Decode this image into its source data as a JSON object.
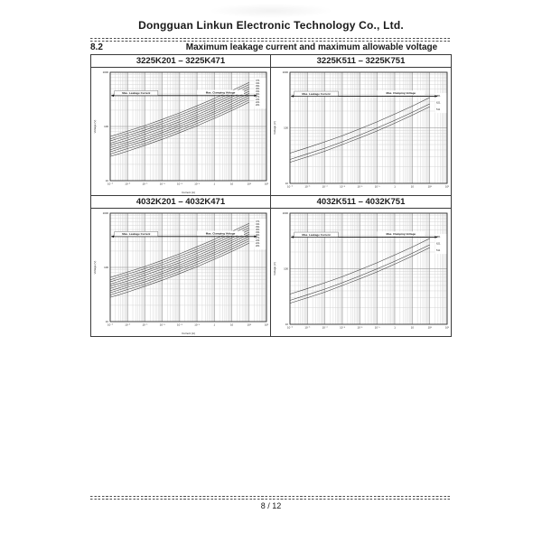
{
  "page": {
    "company": "Dongguan Linkun Electronic Technology Co., Ltd.",
    "section_number": "8.2",
    "section_title": "Maximum leakage current and maximum allowable voltage",
    "page_number": "8 / 12"
  },
  "chart_data": [
    {
      "type": "line",
      "title": "3225K201 – 3225K471",
      "xlabel": "Current (A)",
      "ylabel": "Voltage  (V)",
      "x_scale": "log",
      "y_scale": "log",
      "x_range_log": [
        -6,
        3
      ],
      "y_range_log": [
        1,
        3
      ],
      "x_ticks": [
        "10⁻⁶",
        "10⁻⁵",
        "10⁻⁴",
        "10⁻³",
        "10⁻²",
        "10⁻¹",
        "1",
        "10",
        "10²",
        "10³"
      ],
      "y_ticks": [
        "10",
        "100",
        "1000"
      ],
      "grid": "log-minor",
      "legend_position": "right-inside",
      "annotation_leakage": "Max. Leakage Current",
      "annotation_clamping": "Max. Clamping  Voltage",
      "x_points_log": [
        -6,
        -5,
        -4,
        -3,
        -2,
        -1,
        0,
        1,
        2
      ],
      "series": [
        {
          "label": "471",
          "voltages": [
            65,
            82,
            104,
            135,
            178,
            240,
            328,
            458,
            650
          ]
        },
        {
          "label": "431",
          "voltages": [
            59,
            75,
            95,
            123,
            162,
            218,
            299,
            417,
            592
          ]
        },
        {
          "label": "391",
          "voltages": [
            54,
            68,
            86,
            112,
            148,
            199,
            272,
            379,
            539
          ]
        },
        {
          "label": "361",
          "voltages": [
            49,
            62,
            79,
            102,
            134,
            181,
            248,
            346,
            491
          ]
        },
        {
          "label": "331",
          "voltages": [
            45,
            56,
            72,
            93,
            122,
            165,
            226,
            315,
            447
          ]
        },
        {
          "label": "301",
          "voltages": [
            41,
            51,
            65,
            84,
            111,
            150,
            205,
            287,
            407
          ]
        },
        {
          "label": "271",
          "voltages": [
            37,
            47,
            59,
            77,
            102,
            137,
            187,
            261,
            371
          ]
        },
        {
          "label": "241",
          "voltages": [
            34,
            43,
            54,
            70,
            93,
            125,
            171,
            238,
            338
          ]
        },
        {
          "label": "221",
          "voltages": [
            31,
            39,
            49,
            64,
            84,
            114,
            155,
            217,
            308
          ]
        },
        {
          "label": "201",
          "voltages": [
            28,
            35,
            45,
            58,
            77,
            103,
            141,
            197,
            280
          ]
        }
      ]
    },
    {
      "type": "line",
      "title": "3225K511 – 3225K751",
      "xlabel": "",
      "ylabel": "Voltage  (V)",
      "x_scale": "log",
      "y_scale": "log",
      "x_range_log": [
        -6,
        3
      ],
      "y_range_log": [
        1,
        3
      ],
      "x_ticks": [
        "10⁻⁶",
        "10⁻⁵",
        "10⁻⁴",
        "10⁻³",
        "10⁻²",
        "10⁻¹",
        "1",
        "10",
        "10²",
        "10³"
      ],
      "y_ticks": [
        "10",
        "100",
        "1000"
      ],
      "grid": "log-minor",
      "legend_position": "right-inside",
      "annotation_leakage": "Max. Leakage Current",
      "annotation_clamping": "Max.  Clamping  Voltage",
      "x_points_log": [
        -6,
        -5,
        -4,
        -3,
        -2,
        -1,
        0,
        1,
        2
      ],
      "series": [
        {
          "label": "751",
          "voltages": [
            35,
            44,
            56,
            72,
            96,
            129,
            177,
            246,
            350
          ]
        },
        {
          "label": "621",
          "voltages": [
            27,
            34,
            43,
            56,
            74,
            100,
            136,
            190,
            270
          ]
        },
        {
          "label": "511",
          "voltages": [
            24,
            30,
            38,
            50,
            66,
            88,
            121,
            169,
            240
          ]
        }
      ]
    },
    {
      "type": "line",
      "title": "4032K201 – 4032K471",
      "xlabel": "Current (A)",
      "ylabel": "Voltage  (V)",
      "x_scale": "log",
      "y_scale": "log",
      "x_range_log": [
        -6,
        3
      ],
      "y_range_log": [
        1,
        3
      ],
      "x_ticks": [
        "10⁻⁶",
        "10⁻⁵",
        "10⁻⁴",
        "10⁻³",
        "10⁻²",
        "10⁻¹",
        "1",
        "10",
        "10²",
        "10³"
      ],
      "y_ticks": [
        "10",
        "100",
        "1000"
      ],
      "grid": "log-minor",
      "legend_position": "right-inside",
      "annotation_leakage": "Max. Leakage Current",
      "annotation_clamping": "Max. Clamping  Voltage",
      "x_points_log": [
        -6,
        -5,
        -4,
        -3,
        -2,
        -1,
        0,
        1,
        2
      ],
      "series": [
        {
          "label": "471",
          "voltages": [
            65,
            82,
            104,
            135,
            178,
            240,
            328,
            458,
            650
          ]
        },
        {
          "label": "431",
          "voltages": [
            59,
            75,
            95,
            123,
            162,
            218,
            299,
            417,
            592
          ]
        },
        {
          "label": "391",
          "voltages": [
            54,
            68,
            86,
            112,
            148,
            199,
            272,
            379,
            539
          ]
        },
        {
          "label": "361",
          "voltages": [
            49,
            62,
            79,
            102,
            134,
            181,
            248,
            346,
            491
          ]
        },
        {
          "label": "331",
          "voltages": [
            45,
            56,
            72,
            93,
            122,
            165,
            226,
            315,
            447
          ]
        },
        {
          "label": "301",
          "voltages": [
            41,
            51,
            65,
            84,
            111,
            150,
            205,
            287,
            407
          ]
        },
        {
          "label": "271",
          "voltages": [
            37,
            47,
            59,
            77,
            102,
            137,
            187,
            261,
            371
          ]
        },
        {
          "label": "241",
          "voltages": [
            34,
            43,
            54,
            70,
            93,
            125,
            171,
            238,
            338
          ]
        },
        {
          "label": "221",
          "voltages": [
            31,
            39,
            49,
            64,
            84,
            114,
            155,
            217,
            308
          ]
        },
        {
          "label": "201",
          "voltages": [
            28,
            35,
            45,
            58,
            77,
            103,
            141,
            197,
            280
          ]
        }
      ]
    },
    {
      "type": "line",
      "title": "4032K511 – 4032K751",
      "xlabel": "",
      "ylabel": "Voltage  (V)",
      "x_scale": "log",
      "y_scale": "log",
      "x_range_log": [
        -6,
        3
      ],
      "y_range_log": [
        1,
        3
      ],
      "x_ticks": [
        "10⁻⁶",
        "10⁻⁵",
        "10⁻⁴",
        "10⁻³",
        "10⁻²",
        "10⁻¹",
        "1",
        "10",
        "10²",
        "10³"
      ],
      "y_ticks": [
        "10",
        "100",
        "1000"
      ],
      "grid": "log-minor",
      "legend_position": "right-inside",
      "annotation_leakage": "Max. Leakage Current",
      "annotation_clamping": "Max.  Clamping  Voltage",
      "x_points_log": [
        -6,
        -5,
        -4,
        -3,
        -2,
        -1,
        0,
        1,
        2
      ],
      "series": [
        {
          "label": "751",
          "voltages": [
            35,
            44,
            56,
            72,
            96,
            129,
            177,
            246,
            350
          ]
        },
        {
          "label": "621",
          "voltages": [
            27,
            34,
            43,
            56,
            74,
            100,
            136,
            190,
            270
          ]
        },
        {
          "label": "511",
          "voltages": [
            24,
            30,
            38,
            50,
            66,
            88,
            121,
            169,
            240
          ]
        }
      ]
    }
  ]
}
